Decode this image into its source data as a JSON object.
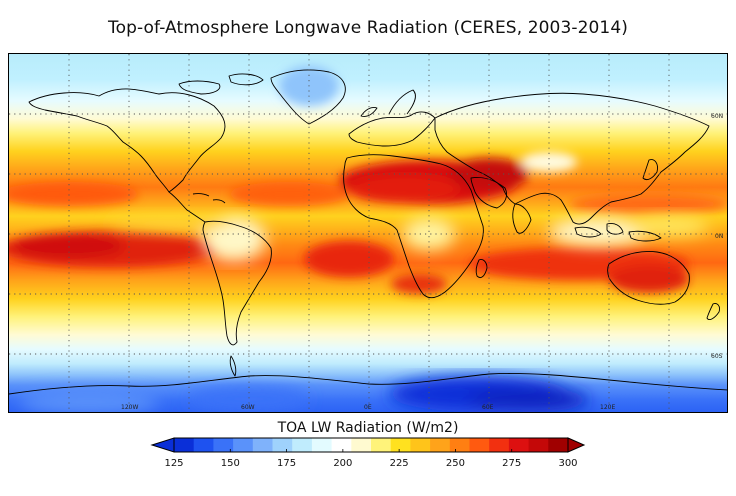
{
  "title": "Top-of-Atmosphere Longwave Radiation (CERES, 2003-2014)",
  "colorbar": {
    "label": "TOA LW Radiation (W/m2)",
    "ticks": [
      "125",
      "150",
      "175",
      "200",
      "225",
      "250",
      "275",
      "300"
    ],
    "min": 125,
    "max": 300,
    "colors": [
      "#0a2fd8",
      "#1e52f0",
      "#3a72f8",
      "#5a92fa",
      "#7fb2fb",
      "#9fd2fc",
      "#c0ecfd",
      "#e3fbff",
      "#ffffff",
      "#fffad0",
      "#fff37a",
      "#ffe11f",
      "#ffc41a",
      "#ffa31a",
      "#ff7f12",
      "#ff5a10",
      "#f23010",
      "#dd1010",
      "#c40808",
      "#a00000"
    ],
    "under_color": "#0a2fd8",
    "over_color": "#a00000"
  },
  "map": {
    "projection": "cylindrical-equidistant",
    "longitude_range": [
      -180,
      180
    ],
    "latitude_range": [
      -90,
      90
    ],
    "gridlines": "dotted",
    "lon_labels": [
      "120W",
      "60W",
      "0E",
      "60E",
      "120E"
    ],
    "lat_labels": [
      "60N",
      "0N",
      "60S"
    ],
    "coastlines": true
  }
}
